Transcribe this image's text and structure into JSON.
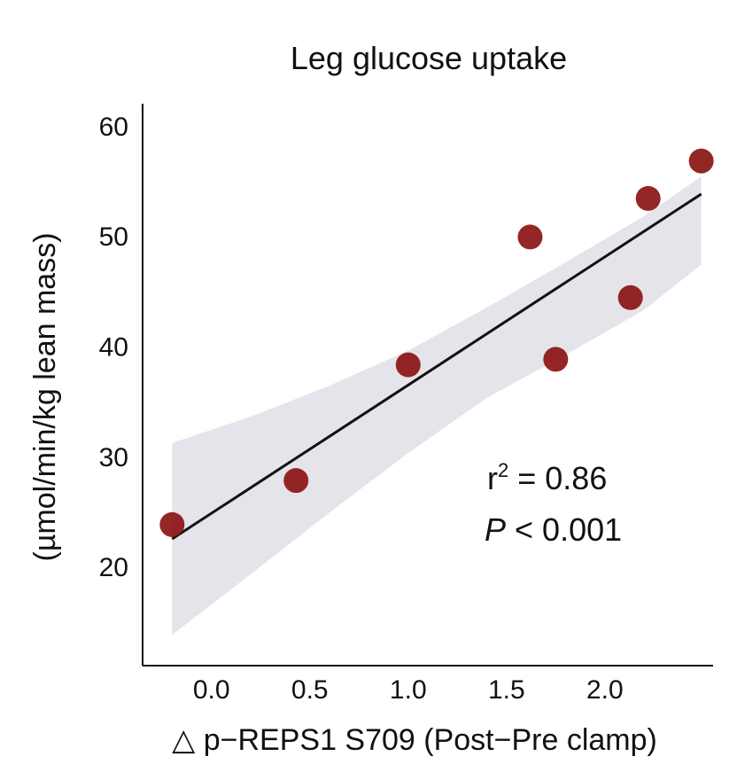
{
  "chart_data": {
    "type": "scatter",
    "title": "Leg glucose uptake",
    "xlabel": "△ p−REPS1 S709 (Post−Pre clamp)",
    "ylabel": "(µmol/min/kg lean mass)",
    "xlim": [
      -0.35,
      2.55
    ],
    "ylim": [
      11,
      62
    ],
    "xticks": [
      "0.0",
      "0.5",
      "1.0",
      "1.5",
      "2.0"
    ],
    "yticks": [
      "20",
      "30",
      "40",
      "50",
      "60"
    ],
    "grid": false,
    "points": [
      {
        "x": -0.2,
        "y": 23.8
      },
      {
        "x": 0.43,
        "y": 27.8
      },
      {
        "x": 1.0,
        "y": 38.3
      },
      {
        "x": 1.62,
        "y": 49.9
      },
      {
        "x": 1.75,
        "y": 38.8
      },
      {
        "x": 2.13,
        "y": 44.4
      },
      {
        "x": 2.22,
        "y": 53.4
      },
      {
        "x": 2.49,
        "y": 56.8
      }
    ],
    "fit_line": {
      "x": [
        -0.2,
        2.49
      ],
      "y": [
        22.5,
        53.8
      ]
    },
    "confidence_band": {
      "x": [
        -0.2,
        0.2,
        0.6,
        1.0,
        1.4,
        1.8,
        2.2,
        2.49
      ],
      "upper": [
        31.2,
        33.6,
        36.4,
        39.6,
        43.5,
        47.6,
        51.8,
        55.4
      ],
      "lower": [
        13.8,
        19.3,
        24.9,
        30.3,
        35.3,
        39.2,
        43.3,
        47.4
      ]
    },
    "colors": {
      "points": "#8b1414",
      "line": "#111111",
      "band": "#e4e4ea"
    },
    "annotations": {
      "r2_prefix": "r",
      "r2_sup": "2",
      "r2_value": " = 0.86",
      "p_label": "P",
      "p_value": " < 0.001"
    }
  }
}
